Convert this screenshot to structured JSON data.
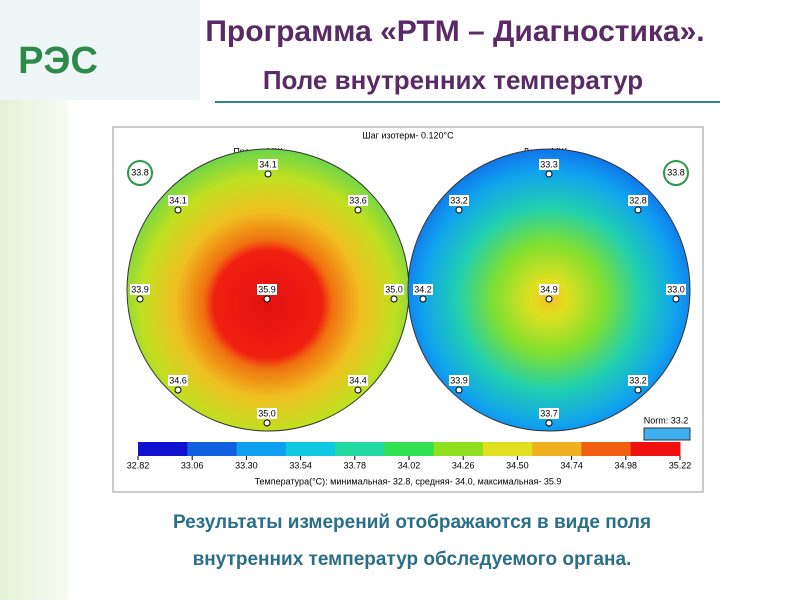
{
  "logo": "РЭС",
  "header": {
    "title": "Программа «РТМ – Диагностика».",
    "subtitle": "Поле внутренних температур"
  },
  "figure": {
    "step": "Шаг изотерм- 0.120°С",
    "left": {
      "label": "Правая МЖ",
      "points": [
        "33.8",
        "34.1",
        "34.1",
        "33.6",
        "33.9",
        "35.9",
        "35.0",
        "34.6",
        "34.4",
        "35.0"
      ]
    },
    "right": {
      "label": "Левая МЖ",
      "points": [
        "33.3",
        "33.8",
        "33.2",
        "32.8",
        "34.2",
        "34.9",
        "33.0",
        "33.9",
        "33.2",
        "33.7"
      ]
    },
    "norm": "Norm: 33.2",
    "scale": [
      "32.82",
      "33.06",
      "33.30",
      "33.54",
      "33.78",
      "34.02",
      "34.26",
      "34.50",
      "34.74",
      "34.98",
      "35.22"
    ],
    "summary": "Температура(°С): минимальная- 32.8, средняя- 34.0, максимальная- 35.9"
  },
  "caption": [
    "Результаты измерений отображаются в виде поля",
    "внутренних температур обследуемого органа."
  ]
}
